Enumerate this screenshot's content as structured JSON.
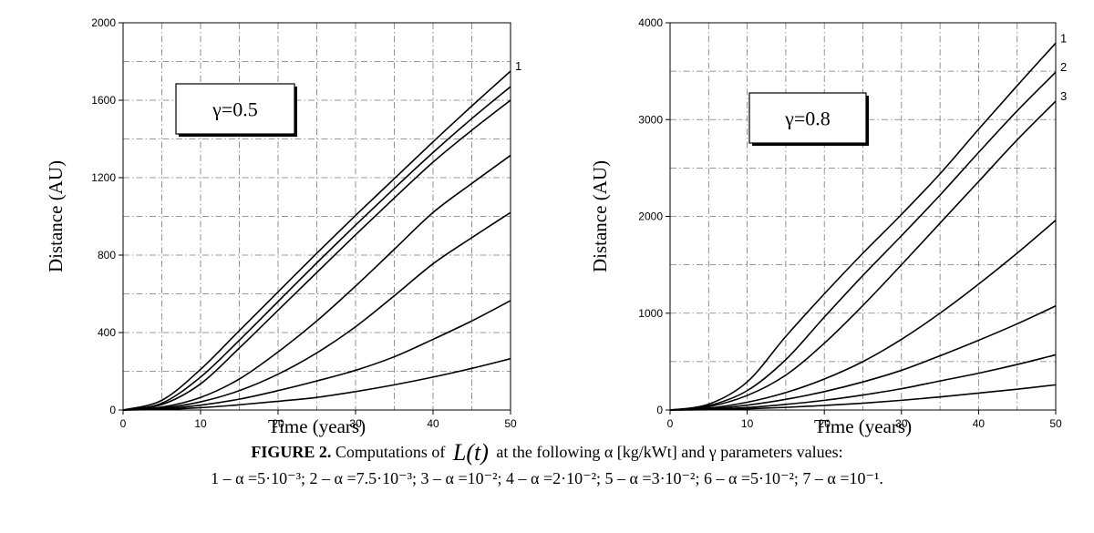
{
  "chart_data": [
    {
      "type": "line",
      "annotation": "γ=0.5",
      "xlabel": "Time (years)",
      "ylabel": "Distance (AU)",
      "xlim": [
        0,
        50
      ],
      "ylim": [
        0,
        2000
      ],
      "xticks": [
        0,
        10,
        20,
        30,
        40,
        50
      ],
      "yticks": [
        0,
        400,
        800,
        1200,
        1600,
        2000
      ],
      "grid": "dash-dot",
      "series": [
        {
          "label": "1",
          "x": [
            0,
            5,
            10,
            15,
            20,
            25,
            30,
            35,
            40,
            45,
            50
          ],
          "y": [
            0,
            50,
            210,
            410,
            610,
            810,
            1005,
            1195,
            1385,
            1570,
            1750
          ]
        },
        {
          "x": [
            0,
            5,
            10,
            15,
            20,
            25,
            30,
            35,
            40,
            45,
            50
          ],
          "y": [
            0,
            35,
            170,
            360,
            560,
            760,
            955,
            1145,
            1330,
            1505,
            1670
          ]
        },
        {
          "x": [
            0,
            5,
            10,
            15,
            20,
            25,
            30,
            35,
            40,
            45,
            50
          ],
          "y": [
            0,
            28,
            135,
            320,
            515,
            710,
            905,
            1095,
            1280,
            1445,
            1600
          ]
        },
        {
          "x": [
            0,
            5,
            10,
            15,
            20,
            25,
            30,
            35,
            40,
            45,
            50
          ],
          "y": [
            0,
            15,
            65,
            160,
            300,
            460,
            640,
            830,
            1020,
            1170,
            1315
          ]
        },
        {
          "x": [
            0,
            5,
            10,
            15,
            20,
            25,
            30,
            35,
            40,
            45,
            50
          ],
          "y": [
            0,
            10,
            42,
            100,
            185,
            295,
            430,
            590,
            755,
            890,
            1020
          ]
        },
        {
          "x": [
            0,
            5,
            10,
            15,
            20,
            25,
            30,
            35,
            40,
            45,
            50
          ],
          "y": [
            0,
            6,
            25,
            56,
            100,
            150,
            205,
            275,
            365,
            460,
            565
          ]
        },
        {
          "x": [
            0,
            5,
            10,
            15,
            20,
            25,
            30,
            35,
            40,
            45,
            50
          ],
          "y": [
            0,
            3,
            12,
            27,
            45,
            65,
            95,
            130,
            170,
            215,
            265
          ]
        }
      ]
    },
    {
      "type": "line",
      "annotation": "γ=0.8",
      "xlabel": "Time (years)",
      "ylabel": "Distance (AU)",
      "xlim": [
        0,
        50
      ],
      "ylim": [
        0,
        4000
      ],
      "xticks": [
        0,
        10,
        20,
        30,
        40,
        50
      ],
      "yticks": [
        0,
        1000,
        2000,
        3000,
        4000
      ],
      "grid": "dash-dot",
      "series": [
        {
          "label": "1",
          "x": [
            0,
            5,
            10,
            15,
            20,
            25,
            30,
            35,
            40,
            45,
            50
          ],
          "y": [
            0,
            60,
            290,
            760,
            1200,
            1620,
            2020,
            2440,
            2900,
            3350,
            3790
          ]
        },
        {
          "label": "2",
          "x": [
            0,
            5,
            10,
            15,
            20,
            25,
            30,
            35,
            40,
            45,
            50
          ],
          "y": [
            0,
            45,
            200,
            520,
            960,
            1390,
            1800,
            2220,
            2660,
            3090,
            3490
          ]
        },
        {
          "label": "3",
          "x": [
            0,
            5,
            10,
            15,
            20,
            25,
            30,
            35,
            40,
            45,
            50
          ],
          "y": [
            0,
            35,
            150,
            360,
            690,
            1080,
            1500,
            1930,
            2360,
            2790,
            3190
          ]
        },
        {
          "x": [
            0,
            5,
            10,
            15,
            20,
            25,
            30,
            35,
            40,
            45,
            50
          ],
          "y": [
            0,
            20,
            80,
            180,
            320,
            500,
            730,
            1000,
            1300,
            1620,
            1960
          ]
        },
        {
          "x": [
            0,
            5,
            10,
            15,
            20,
            25,
            30,
            35,
            40,
            45,
            50
          ],
          "y": [
            0,
            12,
            50,
            110,
            190,
            290,
            410,
            560,
            720,
            890,
            1075
          ]
        },
        {
          "x": [
            0,
            5,
            10,
            15,
            20,
            25,
            30,
            35,
            40,
            45,
            50
          ],
          "y": [
            0,
            6,
            25,
            58,
            100,
            155,
            220,
            300,
            380,
            470,
            570
          ]
        },
        {
          "x": [
            0,
            5,
            10,
            15,
            20,
            25,
            30,
            35,
            40,
            45,
            50
          ],
          "y": [
            0,
            3,
            12,
            27,
            47,
            70,
            100,
            135,
            175,
            215,
            260
          ]
        }
      ]
    }
  ],
  "caption": {
    "figure_label": "FIGURE 2.",
    "line1_text": " Computations of ",
    "function": "L(t)",
    "line1_tail": " at the following α [kg/kWt] and γ parameters values:",
    "line2": "1 – α =5·10⁻³; 2 – α =7.5·10⁻³; 3 – α =10⁻²; 4 – α =2·10⁻²; 5 – α =3·10⁻²; 6 – α =5·10⁻²; 7 – α =10⁻¹."
  }
}
